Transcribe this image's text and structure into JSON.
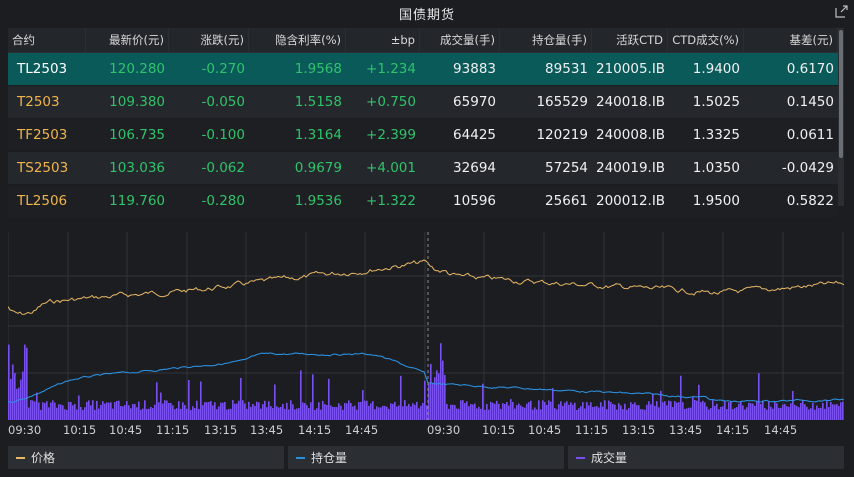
{
  "window": {
    "title": "国债期货"
  },
  "colors": {
    "price": "#e9b866",
    "open_interest": "#2c8fdd",
    "volume": "#7a4ff0",
    "up": "#2fc36a",
    "symbol": "#f0b44c",
    "selected_row": "#0b5a5a"
  },
  "table": {
    "headers": [
      "合约",
      "最新价(元)",
      "涨跌(元)",
      "隐含利率(%)",
      "±bp",
      "成交量(手)",
      "持仓量(手)",
      "活跃CTD",
      "CTD成交(%)",
      "基差(元)"
    ],
    "rows": [
      [
        "TL2503",
        "120.280",
        "-0.270",
        "1.9568",
        "+1.234",
        "93883",
        "89531",
        "210005.IB",
        "1.9400",
        "0.6170"
      ],
      [
        "T2503",
        "109.380",
        "-0.050",
        "1.5158",
        "+0.750",
        "65970",
        "165529",
        "240018.IB",
        "1.5025",
        "0.1450"
      ],
      [
        "TF2503",
        "106.735",
        "-0.100",
        "1.3164",
        "+2.399",
        "64425",
        "120219",
        "240008.IB",
        "1.3325",
        "0.0611"
      ],
      [
        "TS2503",
        "103.036",
        "-0.062",
        "0.9679",
        "+4.001",
        "32694",
        "57254",
        "240019.IB",
        "1.0350",
        "-0.0429"
      ],
      [
        "TL2506",
        "119.760",
        "-0.280",
        "1.9536",
        "+1.322",
        "10596",
        "25661",
        "200012.IB",
        "1.9500",
        "0.5822"
      ]
    ]
  },
  "chart": {
    "x_ticks": [
      "09:30",
      "10:15",
      "10:45",
      "11:15",
      "13:15",
      "13:45",
      "14:15",
      "14:45",
      "09:30",
      "10:15",
      "10:45",
      "11:15",
      "13:15",
      "13:45",
      "14:15",
      "14:45"
    ]
  },
  "legend": {
    "price": "价格",
    "open_interest": "持仓量",
    "volume": "成交量"
  }
}
